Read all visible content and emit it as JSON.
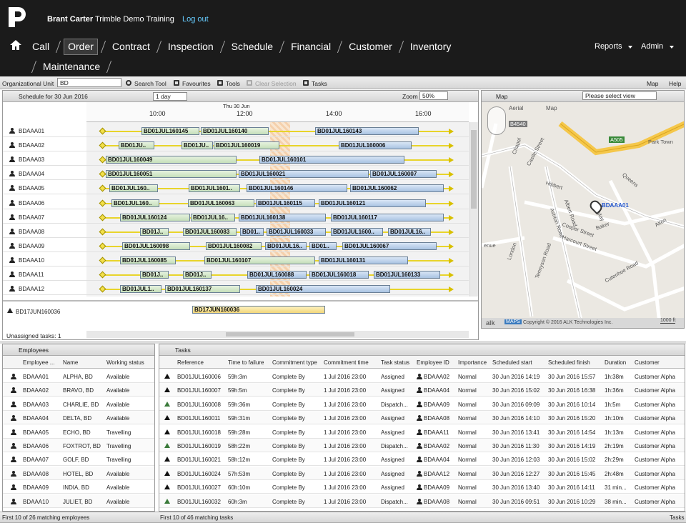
{
  "header": {
    "user": "Brant Carter",
    "organisation": "Trimble Demo Training",
    "logout": "Log out"
  },
  "nav": {
    "items": [
      "Call",
      "Order",
      "Contract",
      "Inspection",
      "Schedule",
      "Financial",
      "Customer",
      "Inventory",
      "Maintenance"
    ],
    "right": [
      "Reports",
      "Admin"
    ]
  },
  "toolbar": {
    "org_unit_label": "Organizational Unit",
    "org_unit": "BD",
    "tools": [
      "Search Tool",
      "Favourites",
      "Tools",
      "Clear Selection",
      "Tasks"
    ],
    "right": [
      "Map",
      "Help"
    ]
  },
  "schedule": {
    "title": "Schedule for 30 Jun 2016",
    "interval": "1 day",
    "zoom_label": "Zoom",
    "zoom": "50%",
    "date": "Thu 30 Jun",
    "times": [
      "10:00",
      "12:00",
      "14:00",
      "16:00"
    ],
    "rows": [
      {
        "employee": "BDAAA01",
        "tasks": [
          "BD01JUL160145",
          "BD01JUL160140",
          "BD01JUL160143"
        ]
      },
      {
        "employee": "BDAAA02",
        "tasks": [
          "BD01JU..",
          "BD01JU..",
          "BD01JUL160019",
          "BD01JUL160006"
        ]
      },
      {
        "employee": "BDAAA03",
        "tasks": [
          "BD01JUL160049",
          "BD01JUL160101"
        ]
      },
      {
        "employee": "BDAAA04",
        "tasks": [
          "BD01JUL160051",
          "BD01JUL160021",
          "BD01JUL160007"
        ]
      },
      {
        "employee": "BDAAA05",
        "tasks": [
          "BD01JUL160..",
          "BD01JUL1601..",
          "BD01JUL160146",
          "BD01JUL160062"
        ]
      },
      {
        "employee": "BDAAA06",
        "tasks": [
          "BD01JUL160..",
          "BD01JUL160063",
          "BD01JUL160115",
          "BD01JUL160121"
        ]
      },
      {
        "employee": "BDAAA07",
        "tasks": [
          "BD01JUL160124",
          "BD01JUL16..",
          "BD01JUL160138",
          "BD01JUL160117"
        ]
      },
      {
        "employee": "BDAAA08",
        "tasks": [
          "BD01J..",
          "BD01JUL160083",
          "BD01..",
          "BD01JUL160033",
          "BD01JUL1600..",
          "BD01JUL16.."
        ]
      },
      {
        "employee": "BDAAA09",
        "tasks": [
          "BD01JUL160098",
          "BD01JUL160082",
          "BD01JUL16..",
          "BD01..",
          "BD01JUL160067"
        ]
      },
      {
        "employee": "BDAAA10",
        "tasks": [
          "BD01JUL160085",
          "BD01JUL160107",
          "BD01JUL160131"
        ]
      },
      {
        "employee": "BDAAA11",
        "tasks": [
          "BD01J..",
          "BD01J..",
          "BD01JUL160088",
          "BD01JUL160018",
          "BD01JUL160133"
        ]
      },
      {
        "employee": "BDAAA12",
        "tasks": [
          "BD01JUL1..",
          "BD01JUL160137",
          "BD01JUL160024"
        ]
      }
    ],
    "unassigned": {
      "reference": "BD17JUN160036",
      "task": "BD17JUN160036",
      "count_label": "Unassigned tasks: 1"
    }
  },
  "map": {
    "title": "Map",
    "view": "Please select view",
    "modes": [
      "Aerial",
      "Map"
    ],
    "labels": [
      "B4540",
      "A505",
      "Park Town",
      "Hibbert",
      "Castle Street",
      "Chapel",
      "Ashton Road",
      "Albert Road",
      "Queens",
      "May",
      "Cooper Street",
      "Harcourt Street",
      "Baker",
      "Alton",
      "London",
      "Tennyson Road",
      "Cutenhoe Road",
      "enue"
    ],
    "marker": "BDAAA01",
    "brand": "alk",
    "maps": "MAPS",
    "copyright": "Copyright © 2016 ALK Technologies Inc.",
    "scale": "1000 ft"
  },
  "employees": {
    "title": "Employees",
    "columns": [
      "Employee ...",
      "Name",
      "Working status"
    ],
    "rows": [
      [
        "BDAAA01",
        "ALPHA, BD",
        "Available"
      ],
      [
        "BDAAA02",
        "BRAVO, BD",
        "Available"
      ],
      [
        "BDAAA03",
        "CHARLIE, BD",
        "Available"
      ],
      [
        "BDAAA04",
        "DELTA, BD",
        "Available"
      ],
      [
        "BDAAA05",
        "ECHO, BD",
        "Travelling"
      ],
      [
        "BDAAA06",
        "FOXTROT, BD",
        "Travelling"
      ],
      [
        "BDAAA07",
        "GOLF, BD",
        "Travelling"
      ],
      [
        "BDAAA08",
        "HOTEL, BD",
        "Available"
      ],
      [
        "BDAAA09",
        "INDIA, BD",
        "Available"
      ],
      [
        "BDAAA10",
        "JULIET, BD",
        "Available"
      ]
    ],
    "footer": "First 10 of 26 matching employees"
  },
  "tasks": {
    "title": "Tasks",
    "columns": [
      "Reference",
      "Time to failure",
      "Commitment type",
      "Commitment time",
      "Task status",
      "Employee ID",
      "Importance",
      "Scheduled start",
      "Scheduled finish",
      "Duration",
      "Customer"
    ],
    "rows": [
      [
        "BD01JUL160006",
        "59h:3m",
        "Complete By",
        "1 Jul 2016 23:00",
        "Assigned",
        "BDAAA02",
        "Normal",
        "30 Jun 2016 14:19",
        "30 Jun 2016 15:57",
        "1h:38m",
        "Customer Alpha"
      ],
      [
        "BD01JUL160007",
        "59h:5m",
        "Complete By",
        "1 Jul 2016 23:00",
        "Assigned",
        "BDAAA04",
        "Normal",
        "30 Jun 2016 15:02",
        "30 Jun 2016 16:38",
        "1h:36m",
        "Customer Alpha"
      ],
      [
        "BD01JUL160008",
        "59h:36m",
        "Complete By",
        "1 Jul 2016 23:00",
        "Dispatch...",
        "BDAAA09",
        "Normal",
        "30 Jun 2016 09:09",
        "30 Jun 2016 10:14",
        "1h:5m",
        "Customer Alpha"
      ],
      [
        "BD01JUL160011",
        "59h:31m",
        "Complete By",
        "1 Jul 2016 23:00",
        "Assigned",
        "BDAAA08",
        "Normal",
        "30 Jun 2016 14:10",
        "30 Jun 2016 15:20",
        "1h:10m",
        "Customer Alpha"
      ],
      [
        "BD01JUL160018",
        "59h:28m",
        "Complete By",
        "1 Jul 2016 23:00",
        "Assigned",
        "BDAAA11",
        "Normal",
        "30 Jun 2016 13:41",
        "30 Jun 2016 14:54",
        "1h:13m",
        "Customer Alpha"
      ],
      [
        "BD01JUL160019",
        "58h:22m",
        "Complete By",
        "1 Jul 2016 23:00",
        "Dispatch...",
        "BDAAA02",
        "Normal",
        "30 Jun 2016 11:30",
        "30 Jun 2016 14:19",
        "2h:19m",
        "Customer Alpha"
      ],
      [
        "BD01JUL160021",
        "58h:12m",
        "Complete By",
        "1 Jul 2016 23:00",
        "Assigned",
        "BDAAA04",
        "Normal",
        "30 Jun 2016 12:03",
        "30 Jun 2016 15:02",
        "2h:29m",
        "Customer Alpha"
      ],
      [
        "BD01JUL160024",
        "57h:53m",
        "Complete By",
        "1 Jul 2016 23:00",
        "Assigned",
        "BDAAA12",
        "Normal",
        "30 Jun 2016 12:27",
        "30 Jun 2016 15:45",
        "2h:48m",
        "Customer Alpha"
      ],
      [
        "BD01JUL160027",
        "60h:10m",
        "Complete By",
        "1 Jul 2016 23:00",
        "Assigned",
        "BDAAA09",
        "Normal",
        "30 Jun 2016 13:40",
        "30 Jun 2016 14:11",
        "31 min...",
        "Customer Alpha"
      ],
      [
        "BD01JUL160032",
        "60h:3m",
        "Complete By",
        "1 Jul 2016 23:00",
        "Dispatch...",
        "BDAAA08",
        "Normal",
        "30 Jun 2016 09:51",
        "30 Jun 2016 10:29",
        "38 min...",
        "Customer Alpha"
      ]
    ],
    "footer": "First 10 of 46 matching tasks",
    "status_right": "Tasks"
  }
}
